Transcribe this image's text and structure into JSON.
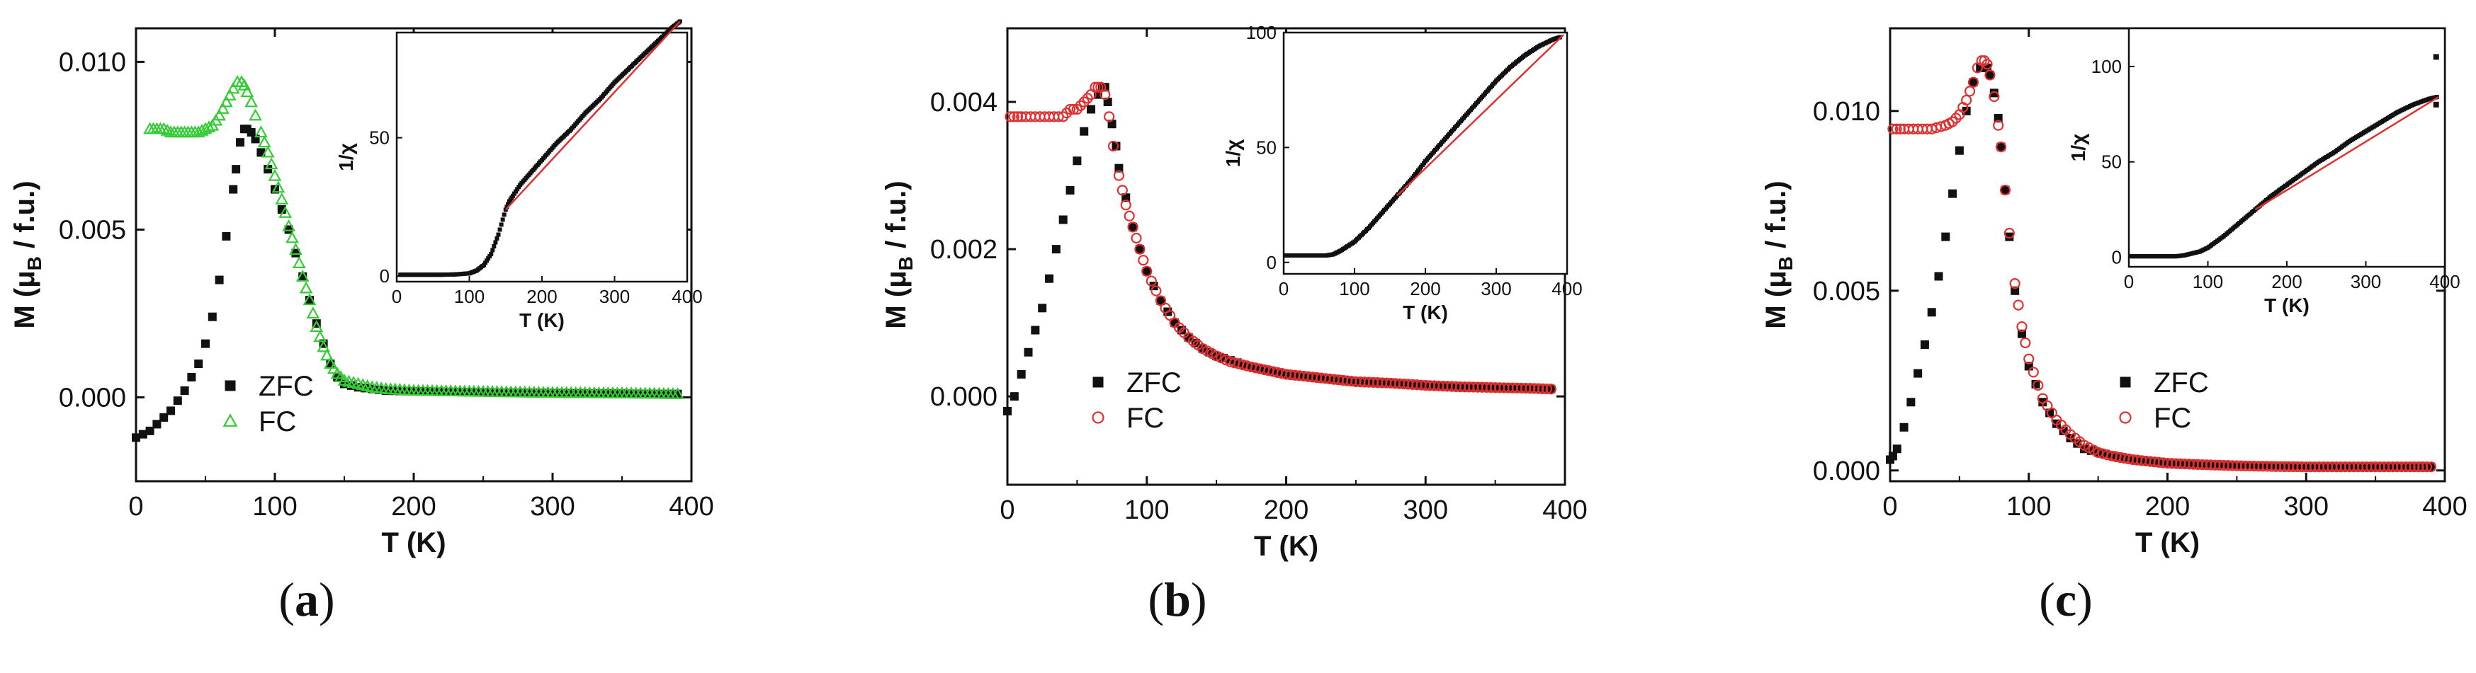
{
  "colors": {
    "zfc": "#111111",
    "fc_a": "#33cc33",
    "fc_bc": "#e03030",
    "fit": "#e03030",
    "axis": "#111111"
  },
  "chart_data": [
    {
      "panel": "a",
      "type": "scatter",
      "caption": {
        "open": "(",
        "letter": "a",
        "close": ")"
      },
      "xlabel": "T (K)",
      "ylabel_parts": {
        "prefix": "M (μ",
        "sub": "B",
        "suffix": " / f.u.)"
      },
      "xlim": [
        0,
        400
      ],
      "ylim": [
        -0.0025,
        0.011
      ],
      "xticks": [
        0,
        100,
        200,
        300,
        400
      ],
      "yticks": [
        0.0,
        0.005,
        0.01
      ],
      "ytick_labels": [
        "0.000",
        "0.005",
        "0.010"
      ],
      "legend": {
        "position": "lower-left-center",
        "items": [
          {
            "name": "ZFC",
            "marker": "filled-square"
          },
          {
            "name": "FC",
            "marker": "open-triangle"
          }
        ]
      },
      "series": [
        {
          "name": "ZFC",
          "marker": "filled-square",
          "x": [
            0,
            5,
            10,
            15,
            20,
            25,
            30,
            35,
            40,
            45,
            50,
            55,
            60,
            65,
            70,
            72,
            75,
            78,
            80,
            83,
            86,
            90,
            95,
            100,
            105,
            110,
            115,
            120,
            125,
            130,
            135,
            140,
            145,
            150,
            160,
            170,
            180,
            200,
            230,
            260,
            290,
            320,
            350,
            370,
            390
          ],
          "y": [
            -0.0012,
            -0.0011,
            -0.001,
            -0.0008,
            -0.0006,
            -0.0004,
            -0.0001,
            0.0002,
            0.0006,
            0.001,
            0.0016,
            0.0024,
            0.0035,
            0.0048,
            0.0062,
            0.0068,
            0.0076,
            0.008,
            0.008,
            0.0079,
            0.0077,
            0.0073,
            0.0068,
            0.0062,
            0.0056,
            0.005,
            0.0043,
            0.0036,
            0.0029,
            0.0022,
            0.0016,
            0.001,
            0.0006,
            0.0004,
            0.0003,
            0.00025,
            0.0002,
            0.00018,
            0.00016,
            0.00014,
            0.00013,
            0.00012,
            0.00011,
            0.0001,
            0.0001
          ]
        },
        {
          "name": "FC",
          "marker": "open-triangle",
          "x": [
            10,
            15,
            20,
            25,
            30,
            35,
            40,
            45,
            50,
            55,
            60,
            65,
            70,
            73,
            76,
            78,
            80,
            83,
            86,
            90,
            95,
            100,
            105,
            110,
            115,
            120,
            125,
            130,
            135,
            140,
            145,
            150,
            160,
            170,
            180,
            200,
            230,
            260,
            290,
            320,
            350,
            370,
            390
          ],
          "y": [
            0.008,
            0.008,
            0.008,
            0.0079,
            0.0079,
            0.0079,
            0.0079,
            0.0079,
            0.008,
            0.0081,
            0.0084,
            0.0088,
            0.0092,
            0.0094,
            0.0094,
            0.0093,
            0.0091,
            0.0088,
            0.0084,
            0.0079,
            0.0073,
            0.0066,
            0.0059,
            0.0051,
            0.0044,
            0.0036,
            0.0029,
            0.0021,
            0.0015,
            0.001,
            0.0007,
            0.0005,
            0.0004,
            0.0003,
            0.00025,
            0.0002,
            0.00018,
            0.00016,
            0.00014,
            0.00013,
            0.00012,
            0.00011,
            0.0001
          ]
        }
      ],
      "inset": {
        "xlabel": "T (K)",
        "ylabel": "1/χ",
        "xlim": [
          0,
          400
        ],
        "ylim": [
          -2,
          88
        ],
        "xticks": [
          0,
          100,
          200,
          300,
          400
        ],
        "yticks": [
          0,
          50
        ],
        "data": {
          "x": [
            5,
            20,
            40,
            60,
            80,
            100,
            110,
            120,
            130,
            140,
            150,
            155,
            160,
            170,
            180,
            200,
            220,
            240,
            260,
            280,
            300,
            320,
            340,
            360,
            380,
            390
          ],
          "y": [
            0.5,
            0.5,
            0.5,
            0.5,
            0.6,
            1,
            2,
            4,
            8,
            15,
            24,
            27,
            29,
            33,
            36,
            42,
            48,
            53,
            59,
            64,
            70,
            75,
            80,
            85,
            90,
            92
          ]
        },
        "fit": {
          "x": [
            150,
            390
          ],
          "y": [
            24,
            92
          ]
        }
      }
    },
    {
      "panel": "b",
      "type": "scatter",
      "caption": {
        "open": "(",
        "letter": "b",
        "close": ")"
      },
      "xlabel": "T (K)",
      "ylabel_parts": {
        "prefix": "M (μ",
        "sub": "B",
        "suffix": " / f.u.)"
      },
      "xlim": [
        0,
        400
      ],
      "ylim": [
        -0.0012,
        0.005
      ],
      "xticks": [
        0,
        100,
        200,
        300,
        400
      ],
      "yticks": [
        0.0,
        0.002,
        0.004
      ],
      "ytick_labels": [
        "0.000",
        "0.002",
        "0.004"
      ],
      "legend": {
        "position": "lower-left-center",
        "items": [
          {
            "name": "ZFC",
            "marker": "filled-square"
          },
          {
            "name": "FC",
            "marker": "open-circle"
          }
        ]
      },
      "series": [
        {
          "name": "ZFC",
          "marker": "filled-square",
          "x": [
            0,
            5,
            10,
            15,
            20,
            25,
            30,
            35,
            40,
            45,
            50,
            55,
            60,
            65,
            68,
            70,
            72,
            75,
            78,
            80,
            85,
            90,
            95,
            100,
            110,
            120,
            130,
            140,
            150,
            175,
            200,
            250,
            300,
            350,
            390
          ],
          "y": [
            -0.0002,
            0.0,
            0.0003,
            0.0006,
            0.0009,
            0.0012,
            0.0016,
            0.002,
            0.0024,
            0.0028,
            0.0032,
            0.0036,
            0.0039,
            0.0041,
            0.0042,
            0.0042,
            0.004,
            0.0037,
            0.0034,
            0.0031,
            0.0027,
            0.0023,
            0.002,
            0.0017,
            0.0013,
            0.001,
            0.0008,
            0.00065,
            0.00055,
            0.0004,
            0.0003,
            0.0002,
            0.00015,
            0.00012,
            0.0001
          ]
        },
        {
          "name": "FC",
          "marker": "open-circle",
          "x": [
            2,
            10,
            20,
            30,
            40,
            45,
            50,
            55,
            60,
            63,
            65,
            67,
            70,
            73,
            76,
            80,
            85,
            90,
            95,
            100,
            110,
            120,
            130,
            140,
            150,
            160,
            175,
            200,
            225,
            250,
            275,
            300,
            325,
            350,
            375,
            390
          ],
          "y": [
            0.0038,
            0.0038,
            0.0038,
            0.0038,
            0.0038,
            0.0039,
            0.0039,
            0.004,
            0.0041,
            0.0042,
            0.0042,
            0.0042,
            0.0041,
            0.0038,
            0.0034,
            0.003,
            0.0026,
            0.0023,
            0.002,
            0.0017,
            0.0013,
            0.001,
            0.0008,
            0.00065,
            0.00055,
            0.00047,
            0.0004,
            0.0003,
            0.00025,
            0.0002,
            0.00018,
            0.00015,
            0.00013,
            0.00012,
            0.00011,
            0.0001
          ]
        }
      ],
      "inset": {
        "xlabel": "T (K)",
        "ylabel": "1/χ",
        "xlim": [
          0,
          400
        ],
        "ylim": [
          -5,
          100
        ],
        "xticks": [
          0,
          100,
          200,
          300,
          400
        ],
        "yticks": [
          0,
          50,
          100
        ],
        "data": {
          "x": [
            2,
            20,
            40,
            60,
            70,
            80,
            90,
            100,
            110,
            120,
            140,
            160,
            180,
            200,
            220,
            240,
            260,
            280,
            300,
            320,
            340,
            360,
            380,
            390
          ],
          "y": [
            3,
            3,
            3,
            3,
            3.5,
            5,
            7,
            9,
            12,
            15,
            22,
            29,
            36,
            44,
            51,
            58,
            65,
            72,
            79,
            85,
            90,
            94,
            97,
            98
          ]
        },
        "fit": {
          "x": [
            160,
            395
          ],
          "y": [
            29,
            99
          ]
        }
      }
    },
    {
      "panel": "c",
      "type": "scatter",
      "caption": {
        "open": "(",
        "letter": "c",
        "close": ")"
      },
      "xlabel": "T (K)",
      "ylabel_parts": {
        "prefix": "M (μ",
        "sub": "B",
        "suffix": " / f.u.)"
      },
      "xlim": [
        0,
        400
      ],
      "ylim": [
        -0.0003,
        0.0123
      ],
      "xticks": [
        0,
        100,
        200,
        300,
        400
      ],
      "yticks": [
        0.0,
        0.005,
        0.01
      ],
      "ytick_labels": [
        "0.000",
        "0.005",
        "0.010"
      ],
      "legend": {
        "position": "lower-left-center",
        "items": [
          {
            "name": "ZFC",
            "marker": "filled-square"
          },
          {
            "name": "FC",
            "marker": "open-circle"
          }
        ]
      },
      "series": [
        {
          "name": "ZFC",
          "marker": "filled-square",
          "x": [
            0,
            2,
            5,
            10,
            15,
            20,
            25,
            30,
            35,
            40,
            45,
            50,
            55,
            60,
            65,
            70,
            72,
            75,
            78,
            80,
            83,
            86,
            90,
            95,
            100,
            110,
            120,
            130,
            140,
            150,
            175,
            200,
            250,
            300,
            350,
            390
          ],
          "y": [
            0.0003,
            0.0004,
            0.0006,
            0.0012,
            0.0019,
            0.0027,
            0.0035,
            0.0044,
            0.0054,
            0.0065,
            0.0077,
            0.0089,
            0.01,
            0.0108,
            0.0112,
            0.0112,
            0.011,
            0.0105,
            0.0098,
            0.009,
            0.0078,
            0.0065,
            0.005,
            0.0038,
            0.0029,
            0.0019,
            0.0013,
            0.0009,
            0.0006,
            0.0005,
            0.0003,
            0.0002,
            0.00015,
            0.00012,
            0.0001,
            0.0001
          ]
        },
        {
          "name": "FC",
          "marker": "open-circle",
          "x": [
            2,
            10,
            20,
            30,
            40,
            45,
            50,
            55,
            60,
            63,
            66,
            68,
            70,
            72,
            75,
            78,
            80,
            83,
            86,
            90,
            95,
            100,
            110,
            120,
            130,
            140,
            150,
            160,
            175,
            200,
            225,
            250,
            275,
            300,
            325,
            350,
            375,
            390
          ],
          "y": [
            0.0095,
            0.0095,
            0.0095,
            0.0095,
            0.0096,
            0.0097,
            0.0099,
            0.0103,
            0.0108,
            0.0112,
            0.0114,
            0.0114,
            0.0113,
            0.011,
            0.0104,
            0.0096,
            0.009,
            0.0078,
            0.0066,
            0.0052,
            0.004,
            0.0031,
            0.002,
            0.0014,
            0.001,
            0.0007,
            0.0005,
            0.0004,
            0.0003,
            0.0002,
            0.00016,
            0.00013,
            0.00011,
            0.0001,
            0.0001,
            0.0001,
            0.0001,
            0.0001
          ]
        }
      ],
      "inset": {
        "xlabel": "T (K)",
        "ylabel": "1/χ",
        "xlim": [
          0,
          400
        ],
        "ylim": [
          -5,
          120
        ],
        "xticks": [
          0,
          100,
          200,
          300,
          400
        ],
        "yticks": [
          0,
          50,
          100
        ],
        "data": {
          "x": [
            2,
            20,
            40,
            60,
            70,
            80,
            90,
            100,
            110,
            120,
            140,
            160,
            180,
            200,
            220,
            240,
            260,
            280,
            300,
            320,
            340,
            360,
            380,
            390
          ],
          "y": [
            0.5,
            0.5,
            0.5,
            0.5,
            1,
            2,
            3,
            5,
            8,
            11,
            18,
            25,
            32,
            38,
            44,
            50,
            55,
            61,
            66,
            71,
            76,
            80,
            83,
            84
          ]
        },
        "extra_points": {
          "x": [
            389,
            389
          ],
          "y": [
            105,
            80
          ]
        },
        "fit": {
          "x": [
            160,
            392
          ],
          "y": [
            25,
            84
          ]
        }
      }
    }
  ]
}
